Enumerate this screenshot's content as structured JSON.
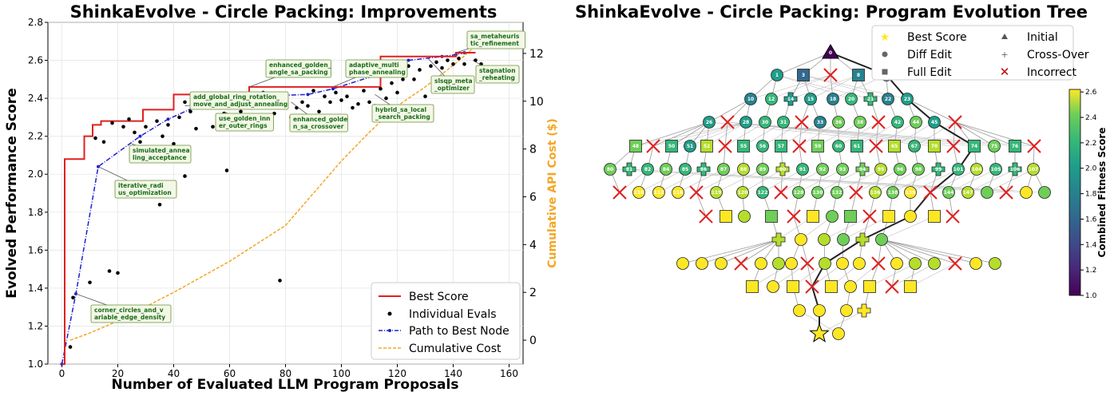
{
  "left_chart": {
    "title": "ShinkaEvolve - Circle Packing: Improvements",
    "xlabel": "Number of Evaluated LLM Program Proposals",
    "ylabel": "Evolved Performance Score",
    "y2label": "Cumulative API Cost ($)",
    "colors": {
      "best": "#e02020",
      "evals": "#000000",
      "path": "#2020d0",
      "cost": "#f5a623",
      "ann_fill": "#f3f8e6",
      "ann_border": "#6b8e3a",
      "ann_text": "#1a6b1a"
    }
  },
  "right_chart": {
    "title": "ShinkaEvolve - Circle Packing: Program Evolution Tree",
    "colorbar_label": "Combined Fitness Score",
    "colorbar_ticks": [
      "1.0",
      "1.2",
      "1.4",
      "1.6",
      "1.8",
      "2.0",
      "2.2",
      "2.4",
      "2.6"
    ],
    "legend": [
      {
        "label": "Best Score",
        "icon": "star"
      },
      {
        "label": "Initial",
        "icon": "triangle"
      },
      {
        "label": "Diff Edit",
        "icon": "circle"
      },
      {
        "label": "Cross-Over",
        "icon": "plus"
      },
      {
        "label": "Full Edit",
        "icon": "square"
      },
      {
        "label": "Incorrect",
        "icon": "x"
      }
    ]
  },
  "chart_data": [
    {
      "type": "line",
      "title": "ShinkaEvolve - Circle Packing: Improvements",
      "xlabel": "Number of Evaluated LLM Program Proposals",
      "ylabel": "Evolved Performance Score",
      "y2label": "Cumulative API Cost ($)",
      "xlim": [
        -5,
        165
      ],
      "ylim": [
        1.0,
        2.8
      ],
      "y2lim": [
        -1,
        13.3
      ],
      "xticks": [
        0,
        20,
        40,
        60,
        80,
        100,
        120,
        140,
        160
      ],
      "yticks": [
        1.0,
        1.2,
        1.4,
        1.6,
        1.8,
        2.0,
        2.2,
        2.4,
        2.6,
        2.8
      ],
      "y2ticks": [
        0,
        2,
        4,
        6,
        8,
        10,
        12
      ],
      "grid": true,
      "legend": {
        "position": "bottom-right",
        "entries": [
          "Best Score",
          "Individual Evals",
          "Path to Best Node",
          "Cumulative Cost"
        ]
      },
      "best_score": {
        "x": [
          0,
          1,
          8,
          11,
          14,
          19,
          29,
          30,
          40,
          67,
          96,
          114,
          141,
          148
        ],
        "y": [
          1.0,
          2.08,
          2.2,
          2.26,
          2.28,
          2.28,
          2.34,
          2.34,
          2.42,
          2.46,
          2.46,
          2.62,
          2.64,
          2.64
        ]
      },
      "path_to_best": {
        "x": [
          0,
          5,
          13,
          28,
          38,
          53,
          67,
          88,
          97,
          112,
          124,
          136,
          141,
          144
        ],
        "y": [
          1.0,
          1.37,
          2.04,
          2.2,
          2.29,
          2.39,
          2.41,
          2.42,
          2.45,
          2.52,
          2.6,
          2.62,
          2.63,
          2.64
        ]
      },
      "individual_evals": [
        [
          3,
          1.09
        ],
        [
          4,
          1.35
        ],
        [
          10,
          1.43
        ],
        [
          17,
          1.49
        ],
        [
          20,
          1.48
        ],
        [
          35,
          1.84
        ],
        [
          44,
          1.99
        ],
        [
          59,
          2.02
        ],
        [
          78,
          1.44
        ],
        [
          12,
          2.19
        ],
        [
          15,
          2.17
        ],
        [
          18,
          2.27
        ],
        [
          22,
          2.25
        ],
        [
          24,
          2.29
        ],
        [
          26,
          2.22
        ],
        [
          28,
          2.17
        ],
        [
          30,
          2.25
        ],
        [
          32,
          2.14
        ],
        [
          34,
          2.28
        ],
        [
          36,
          2.2
        ],
        [
          38,
          2.26
        ],
        [
          40,
          2.16
        ],
        [
          42,
          2.3
        ],
        [
          44,
          2.38
        ],
        [
          46,
          2.33
        ],
        [
          48,
          2.24
        ],
        [
          50,
          2.41
        ],
        [
          52,
          2.36
        ],
        [
          54,
          2.25
        ],
        [
          56,
          2.3
        ],
        [
          58,
          2.32
        ],
        [
          60,
          2.36
        ],
        [
          62,
          2.28
        ],
        [
          64,
          2.33
        ],
        [
          66,
          2.38
        ],
        [
          68,
          2.35
        ],
        [
          70,
          2.41
        ],
        [
          72,
          2.43
        ],
        [
          74,
          2.38
        ],
        [
          76,
          2.32
        ],
        [
          78,
          2.36
        ],
        [
          80,
          2.4
        ],
        [
          82,
          2.3
        ],
        [
          84,
          2.35
        ],
        [
          86,
          2.38
        ],
        [
          88,
          2.36
        ],
        [
          90,
          2.44
        ],
        [
          92,
          2.33
        ],
        [
          94,
          2.41
        ],
        [
          96,
          2.38
        ],
        [
          98,
          2.43
        ],
        [
          100,
          2.39
        ],
        [
          102,
          2.41
        ],
        [
          104,
          2.35
        ],
        [
          106,
          2.37
        ],
        [
          108,
          2.44
        ],
        [
          110,
          2.38
        ],
        [
          112,
          2.36
        ],
        [
          114,
          2.45
        ],
        [
          116,
          2.4
        ],
        [
          118,
          2.48
        ],
        [
          120,
          2.43
        ],
        [
          122,
          2.5
        ],
        [
          124,
          2.57
        ],
        [
          126,
          2.5
        ],
        [
          128,
          2.55
        ],
        [
          130,
          2.41
        ],
        [
          132,
          2.57
        ],
        [
          134,
          2.59
        ],
        [
          136,
          2.56
        ],
        [
          138,
          2.6
        ],
        [
          140,
          2.58
        ],
        [
          142,
          2.61
        ],
        [
          144,
          2.58
        ],
        [
          146,
          2.45
        ],
        [
          148,
          2.6
        ],
        [
          150,
          2.58
        ]
      ],
      "cumulative_cost": {
        "x": [
          3,
          10,
          20,
          40,
          60,
          80,
          100,
          110,
          120,
          130,
          140,
          150
        ],
        "y": [
          0.0,
          0.3,
          0.8,
          2.0,
          3.3,
          4.8,
          7.5,
          8.7,
          9.8,
          10.6,
          11.5,
          12.5
        ]
      },
      "annotations": [
        {
          "text": [
            "corner_circles_and_v",
            "ariable_edge_density"
          ],
          "x": 5,
          "y": 1.37
        },
        {
          "text": [
            "iterative_radi",
            "us_optimization"
          ],
          "x": 13,
          "y": 2.04
        },
        {
          "text": [
            "simulated_annea",
            "ling_acceptance"
          ],
          "x": 25,
          "y": 2.16
        },
        {
          "text": [
            "add_global_ring_rotation_",
            "move_and_adjust_annealing"
          ],
          "x": 44,
          "y": 2.36
        },
        {
          "text": [
            "use_golden_inn",
            "er_outer_rings"
          ],
          "x": 58,
          "y": 2.33
        },
        {
          "text": [
            "enhanced_golden_",
            "angle_sa_packing"
          ],
          "x": 67,
          "y": 2.46
        },
        {
          "text": [
            "enhanced_golde",
            "n_sa_crossover"
          ],
          "x": 82,
          "y": 2.38
        },
        {
          "text": [
            "adaptive_multi",
            "phase_annealing"
          ],
          "x": 97,
          "y": 2.46
        },
        {
          "text": [
            "hybrid_sa_local",
            "_search_packing"
          ],
          "x": 112,
          "y": 2.42
        },
        {
          "text": [
            "slsqp_meta",
            "_optimizer"
          ],
          "x": 131,
          "y": 2.61
        },
        {
          "text": [
            "sa_metaheuris",
            "tic_refinement"
          ],
          "x": 141,
          "y": 2.64
        },
        {
          "text": [
            "stagnation",
            "_reheating"
          ],
          "x": 147,
          "y": 2.6
        }
      ]
    },
    {
      "type": "tree",
      "title": "ShinkaEvolve - Circle Packing: Program Evolution Tree",
      "colorbar": {
        "label": "Combined Fitness Score",
        "range": [
          1.0,
          2.6
        ]
      },
      "labeled_nodes": [
        "0",
        "1",
        "3",
        "4",
        "8",
        "9",
        "10",
        "12",
        "14",
        "15",
        "18",
        "20",
        "21",
        "22",
        "23",
        "26",
        "27",
        "28",
        "30",
        "31",
        "32",
        "33",
        "36",
        "38",
        "40",
        "42",
        "44",
        "45",
        "47",
        "48",
        "49",
        "50",
        "51",
        "52",
        "54",
        "55",
        "56",
        "57",
        "58",
        "59",
        "60",
        "61",
        "63",
        "65",
        "67",
        "70",
        "72",
        "74",
        "75",
        "76",
        "78",
        "80",
        "81",
        "82",
        "84",
        "85",
        "86",
        "87",
        "88",
        "89",
        "90",
        "91",
        "92",
        "93",
        "94",
        "95",
        "96",
        "98",
        "99",
        "101",
        "104",
        "105",
        "106",
        "107",
        "108",
        "110",
        "112",
        "116",
        "118",
        "119",
        "120",
        "122",
        "124",
        "128",
        "130",
        "132",
        "134",
        "136",
        "138",
        "139",
        "140",
        "144",
        "147"
      ]
    }
  ]
}
